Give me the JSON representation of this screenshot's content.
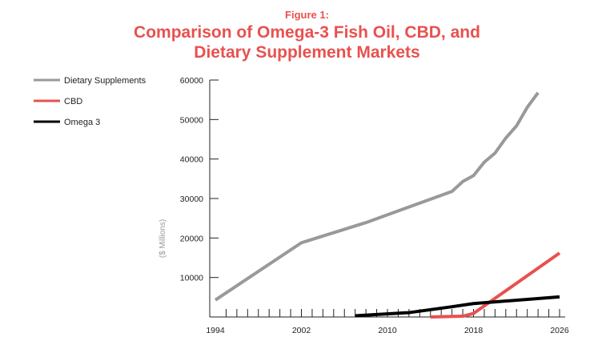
{
  "chart_data": {
    "type": "line",
    "figure_label": "Figure 1:",
    "title": "Comparison of Omega-3 Fish Oil, CBD, and Dietary Supplement Markets",
    "title_lines": [
      "Comparison of Omega-3 Fish Oil, CBD, and",
      "Dietary Supplement Markets"
    ],
    "xlabel": "",
    "ylabel": "($ Millions)",
    "xlim": [
      1994,
      2026
    ],
    "ylim": [
      0,
      60000
    ],
    "x_ticks": [
      1994,
      2002,
      2010,
      2018,
      2026
    ],
    "y_ticks": [
      10000,
      20000,
      30000,
      40000,
      50000,
      60000
    ],
    "legend_position": "top-left",
    "grid": false,
    "series": [
      {
        "name": "Dietary Supplements",
        "color": "#999999",
        "x": [
          1994,
          2002,
          2008,
          2016,
          2017,
          2018,
          2019,
          2020,
          2021,
          2022,
          2023,
          2024
        ],
        "y": [
          4300,
          18800,
          23900,
          31800,
          34300,
          35800,
          39200,
          41500,
          45300,
          48400,
          53100,
          56800
        ]
      },
      {
        "name": "CBD",
        "color": "#e8514f",
        "x": [
          2014,
          2017,
          2018,
          2026
        ],
        "y": [
          0,
          200,
          900,
          16200
        ]
      },
      {
        "name": "Omega 3",
        "color": "#000000",
        "x": [
          2007,
          2012,
          2016,
          2018,
          2026
        ],
        "y": [
          300,
          1100,
          2600,
          3400,
          5100
        ]
      }
    ]
  }
}
